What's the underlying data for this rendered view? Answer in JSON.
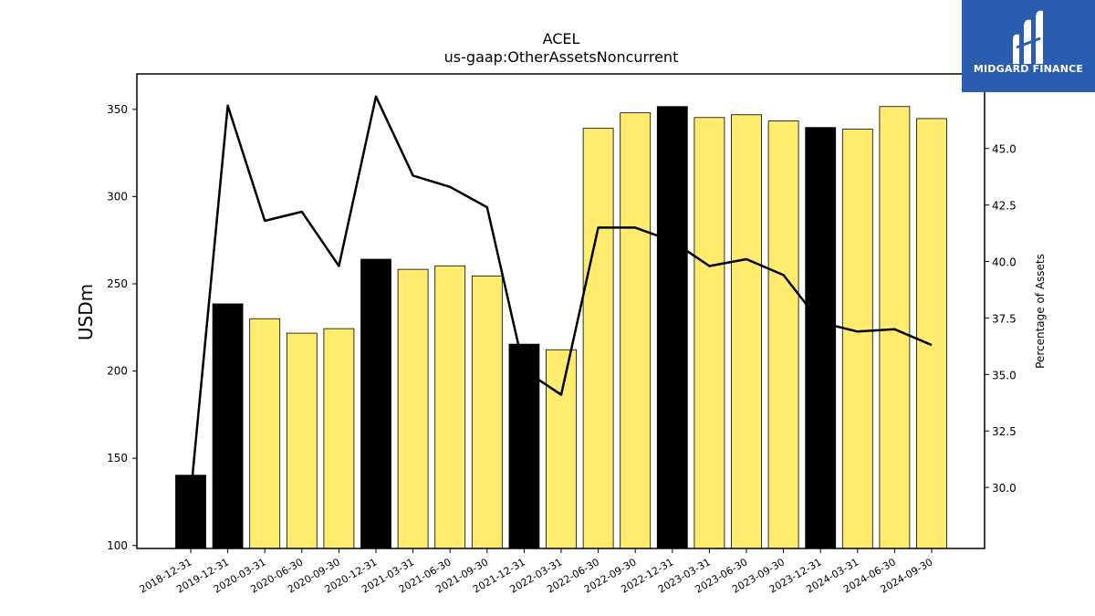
{
  "chart_data": {
    "type": "bar",
    "title": "ACEL",
    "subtitle": "us-gaap:OtherAssetsNoncurrent",
    "ylabel": "USDm",
    "ylabel_right": "Percentage of Assets",
    "ylim": [
      98.3,
      370.3
    ],
    "ylim_right": [
      27.3,
      48.3
    ],
    "yticks": [
      100,
      150,
      200,
      250,
      300,
      350
    ],
    "yticks_right": [
      "30.0",
      "32.5",
      "35.0",
      "37.5",
      "40.0",
      "42.5",
      "45.0"
    ],
    "yticks_right_values": [
      30.0,
      32.5,
      35.0,
      37.5,
      40.0,
      42.5,
      45.0
    ],
    "categories": [
      "2018-12-31",
      "2019-12-31",
      "2020-03-31",
      "2020-06-30",
      "2020-09-30",
      "2020-12-31",
      "2021-03-31",
      "2021-06-30",
      "2021-09-30",
      "2021-12-31",
      "2022-03-31",
      "2022-06-30",
      "2022-09-30",
      "2022-12-31",
      "2023-03-31",
      "2023-06-30",
      "2023-09-30",
      "2023-12-31",
      "2024-03-31",
      "2024-06-30",
      "2024-09-30"
    ],
    "series": [
      {
        "kind": "bar",
        "values": [
          140.3,
          238.5,
          230.0,
          221.7,
          224.3,
          264.1,
          258.3,
          260.3,
          254.5,
          215.4,
          212.2,
          339.1,
          348.0,
          351.6,
          345.3,
          346.9,
          343.3,
          339.6,
          338.6,
          351.6,
          344.7
        ],
        "colors": [
          "#000000",
          "#000000",
          "#ffec6e",
          "#ffec6e",
          "#ffec6e",
          "#000000",
          "#ffec6e",
          "#ffec6e",
          "#ffec6e",
          "#000000",
          "#ffec6e",
          "#ffec6e",
          "#ffec6e",
          "#000000",
          "#ffec6e",
          "#ffec6e",
          "#ffec6e",
          "#000000",
          "#ffec6e",
          "#ffec6e",
          "#ffec6e"
        ]
      },
      {
        "kind": "line",
        "axis": "right",
        "color": "#000000",
        "values": [
          29.7,
          46.9,
          41.8,
          42.2,
          39.8,
          47.3,
          43.8,
          43.3,
          42.4,
          35.2,
          34.1,
          41.5,
          41.5,
          40.9,
          39.8,
          40.1,
          39.4,
          37.3,
          36.9,
          37.0,
          36.3
        ]
      }
    ],
    "grid": false,
    "legend": "none"
  },
  "logo": {
    "text": "MIDGARD FINANCE",
    "background": "#2a5db0",
    "icon": "midgard-logo-icon"
  },
  "colors": {
    "highlight_bar": "#000000",
    "normal_bar": "#ffec6e"
  }
}
